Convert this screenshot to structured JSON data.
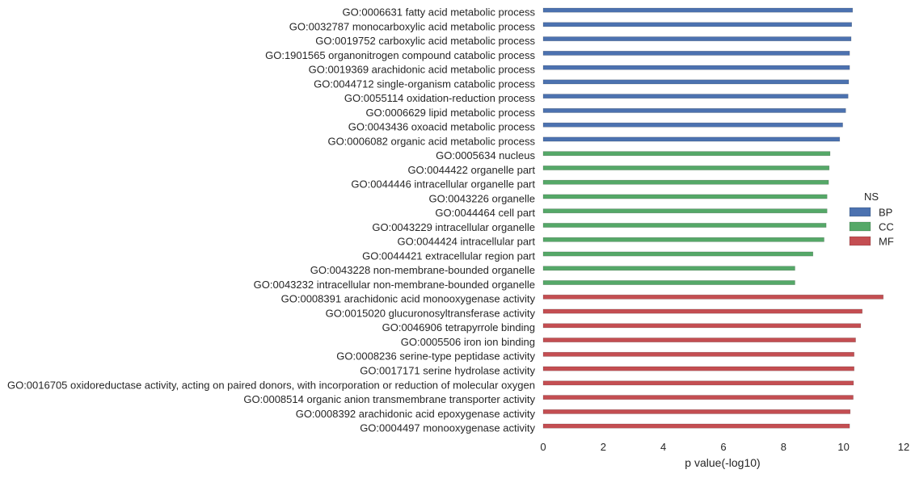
{
  "chart_data": {
    "type": "bar",
    "orientation": "horizontal",
    "categories": [
      "GO:0006631 fatty acid metabolic process",
      "GO:0032787 monocarboxylic acid metabolic process",
      "GO:0019752 carboxylic acid metabolic process",
      "GO:1901565 organonitrogen compound catabolic process",
      "GO:0019369 arachidonic acid metabolic process",
      "GO:0044712 single-organism catabolic process",
      "GO:0055114 oxidation-reduction process",
      "GO:0006629 lipid metabolic process",
      "GO:0043436 oxoacid metabolic process",
      "GO:0006082 organic acid metabolic process",
      "GO:0005634 nucleus",
      "GO:0044422 organelle part",
      "GO:0044446 intracellular organelle part",
      "GO:0043226 organelle",
      "GO:0044464 cell part",
      "GO:0043229 intracellular organelle",
      "GO:0044424 intracellular part",
      "GO:0044421 extracellular region part",
      "GO:0043228 non-membrane-bounded organelle",
      "GO:0043232 intracellular non-membrane-bounded organelle",
      "GO:0008391 arachidonic acid monooxygenase activity",
      "GO:0015020 glucuronosyltransferase activity",
      "GO:0046906 tetrapyrrole binding",
      "GO:0005506 iron ion binding",
      "GO:0008236 serine-type peptidase activity",
      "GO:0017171 serine hydrolase activity",
      "GO:0016705 oxidoreductase activity, acting on paired donors, with incorporation or reduction of molecular oxygen",
      "GO:0008514 organic anion transmembrane transporter activity",
      "GO:0008392 arachidonic acid epoxygenase activity",
      "GO:0004497 monooxygenase activity"
    ],
    "series": [
      {
        "name": "BP",
        "color": "#4c72b0",
        "values": [
          10.3,
          10.27,
          10.25,
          10.2,
          10.2,
          10.17,
          10.15,
          10.07,
          9.97,
          9.87,
          null,
          null,
          null,
          null,
          null,
          null,
          null,
          null,
          null,
          null,
          null,
          null,
          null,
          null,
          null,
          null,
          null,
          null,
          null,
          null
        ]
      },
      {
        "name": "CC",
        "color": "#55a868",
        "values": [
          null,
          null,
          null,
          null,
          null,
          null,
          null,
          null,
          null,
          null,
          9.55,
          9.52,
          9.5,
          9.45,
          9.45,
          9.42,
          9.35,
          8.98,
          8.38,
          8.38,
          null,
          null,
          null,
          null,
          null,
          null,
          null,
          null,
          null,
          null
        ]
      },
      {
        "name": "MF",
        "color": "#c44e52",
        "values": [
          null,
          null,
          null,
          null,
          null,
          null,
          null,
          null,
          null,
          null,
          null,
          null,
          null,
          null,
          null,
          null,
          null,
          null,
          null,
          null,
          11.32,
          10.62,
          10.57,
          10.4,
          10.35,
          10.35,
          10.33,
          10.32,
          10.22,
          10.2
        ]
      }
    ],
    "xlabel": "p value(-log10)",
    "ylabel": "",
    "xlim": [
      0,
      12
    ],
    "xticks": [
      0,
      2,
      4,
      6,
      8,
      10,
      12
    ],
    "grid": false,
    "legend": {
      "title": "NS",
      "placement": "center-right",
      "entries": [
        "BP",
        "CC",
        "MF"
      ]
    }
  }
}
